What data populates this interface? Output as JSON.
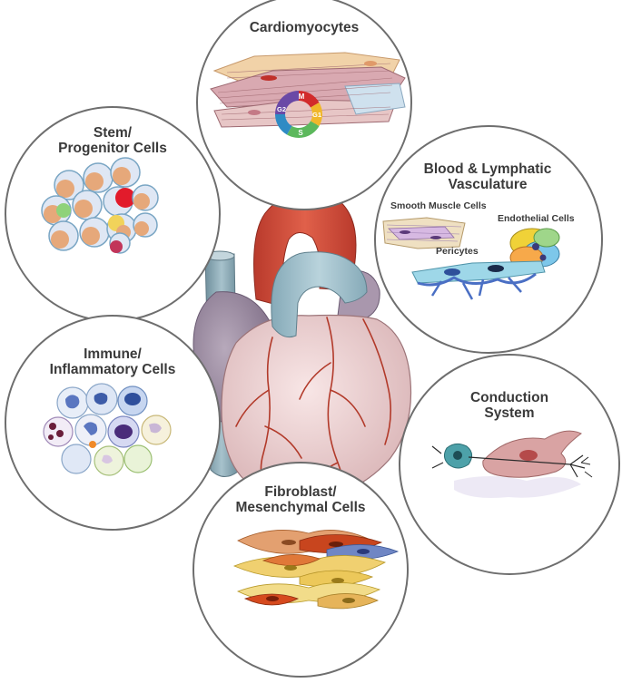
{
  "panels": {
    "cardiomyocytes": {
      "title": "Cardiomyocytes",
      "cycle": [
        "M",
        "G1",
        "S",
        "G2"
      ]
    },
    "stem": {
      "title_lines": [
        "Stem/",
        "Progenitor Cells"
      ]
    },
    "vasculature": {
      "title_lines": [
        "Blood & Lymphatic",
        "Vasculature"
      ],
      "sublabels": {
        "smooth_muscle": "Smooth Muscle Cells",
        "endothelial": "Endothelial Cells",
        "pericytes": "Pericytes"
      }
    },
    "immune": {
      "title_lines": [
        "Immune/",
        "Inflammatory Cells"
      ]
    },
    "conduction": {
      "title_lines": [
        "Conduction",
        "System"
      ]
    },
    "fibroblast": {
      "title_lines": [
        "Fibroblast/",
        "Mesenchymal Cells"
      ]
    }
  },
  "colors": {
    "circle_border": "#6e6e6e",
    "label_text": "#3a3a3a",
    "aorta_red": "#cf4a3a",
    "pulmonary_blue": "#9fbfcc",
    "ventricle_pink": "#f1d6d6",
    "atrium_purple": "#9b8aa0",
    "coronary_red": "#b23a2a"
  }
}
